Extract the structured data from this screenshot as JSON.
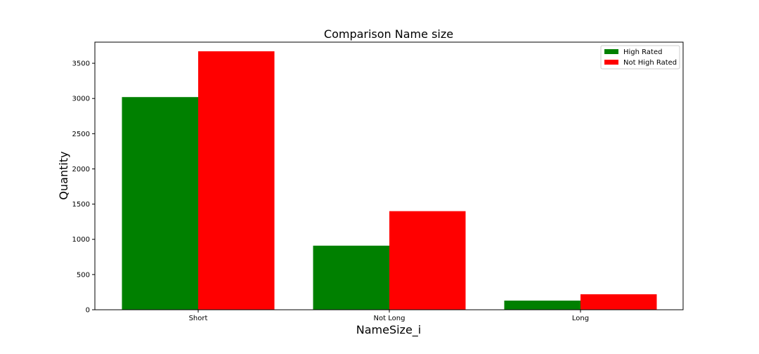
{
  "chart_data": {
    "type": "bar",
    "title": "Comparison Name size",
    "xlabel": "NameSize_i",
    "ylabel": "Quantity",
    "categories": [
      "Short",
      "Not Long",
      "Long"
    ],
    "series": [
      {
        "name": "High Rated",
        "color": "#008000",
        "values": [
          3020,
          910,
          130
        ]
      },
      {
        "name": "Not High Rated",
        "color": "#ff0000",
        "values": [
          3670,
          1400,
          220
        ]
      }
    ],
    "ylim": [
      0,
      3800
    ],
    "yticks": [
      0,
      500,
      1000,
      1500,
      2000,
      2500,
      3000,
      3500
    ],
    "legend": "top-right",
    "grid": false
  }
}
